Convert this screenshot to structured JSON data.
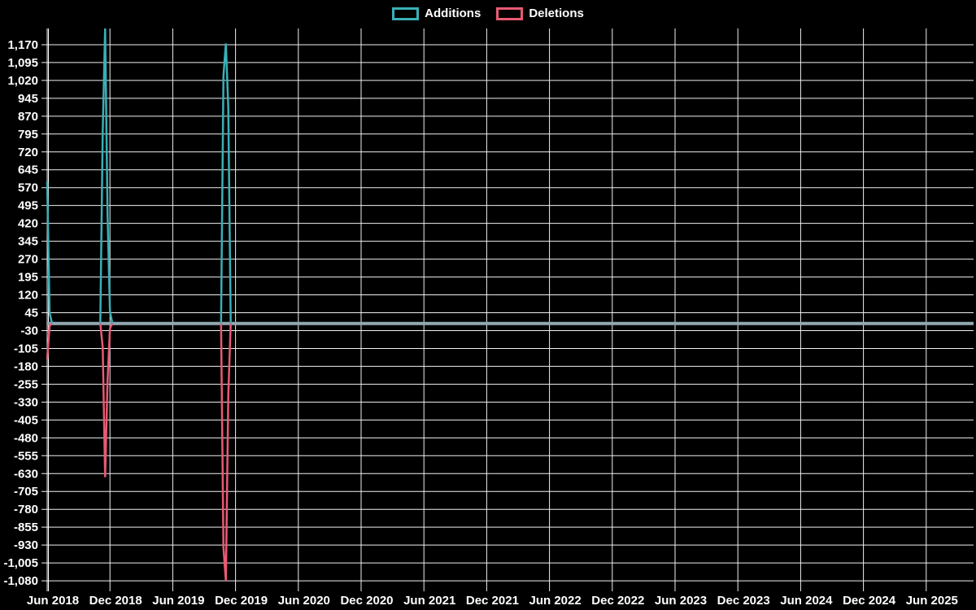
{
  "page": {
    "background": "#000000",
    "text_color": "#ffffff"
  },
  "chart_data": {
    "type": "line",
    "title": "",
    "legend": [
      "Additions",
      "Deletions"
    ],
    "legend_position": "top-center",
    "grid": true,
    "grid_color": "#f0f0f0",
    "axis_color": "#ffffff",
    "zero_line_color": "#93a8b0",
    "x_tick_labels": [
      "Jun 2018",
      "Dec 2018",
      "Jun 2019",
      "Dec 2019",
      "Jun 2020",
      "Dec 2020",
      "Jun 2021",
      "Dec 2021",
      "Jun 2022",
      "Dec 2022",
      "Jun 2023",
      "Dec 2023",
      "Jun 2024",
      "Dec 2024",
      "Jun 2025"
    ],
    "x_unit": "weekly data points; labeled ticks every 6 months",
    "y_tick_labels": [
      "1,170",
      "1,095",
      "1,020",
      "945",
      "870",
      "795",
      "720",
      "645",
      "570",
      "495",
      "420",
      "345",
      "270",
      "195",
      "120",
      "45",
      "-30",
      "-105",
      "-180",
      "-255",
      "-330",
      "-405",
      "-480",
      "-555",
      "-630",
      "-705",
      "-780",
      "-855",
      "-930",
      "-1,005",
      "-1,080"
    ],
    "y_tick_max": 1170,
    "y_tick_step": 75,
    "ylim": [
      -1107,
      1238
    ],
    "weeks_total": 384,
    "baseline_value": 0,
    "series": [
      {
        "name": "Additions",
        "color": "#3aafb7",
        "baseline": 0,
        "spikes": [
          {
            "week": 0,
            "value": 595
          },
          {
            "week": 1,
            "value": 45
          },
          {
            "week": 23,
            "value": 805
          },
          {
            "week": 24,
            "value": 1238
          },
          {
            "week": 25,
            "value": 460
          },
          {
            "week": 26,
            "value": 50
          },
          {
            "week": 73,
            "value": 1040
          },
          {
            "week": 74,
            "value": 1175
          },
          {
            "week": 75,
            "value": 905
          }
        ]
      },
      {
        "name": "Deletions",
        "color": "#e85a73",
        "baseline": 0,
        "spikes": [
          {
            "week": 0,
            "value": -150
          },
          {
            "week": 1,
            "value": -10
          },
          {
            "week": 23,
            "value": -100
          },
          {
            "week": 24,
            "value": -645
          },
          {
            "week": 25,
            "value": -240
          },
          {
            "week": 26,
            "value": -20
          },
          {
            "week": 73,
            "value": -940
          },
          {
            "week": 74,
            "value": -1080
          },
          {
            "week": 75,
            "value": -300
          }
        ]
      }
    ]
  }
}
